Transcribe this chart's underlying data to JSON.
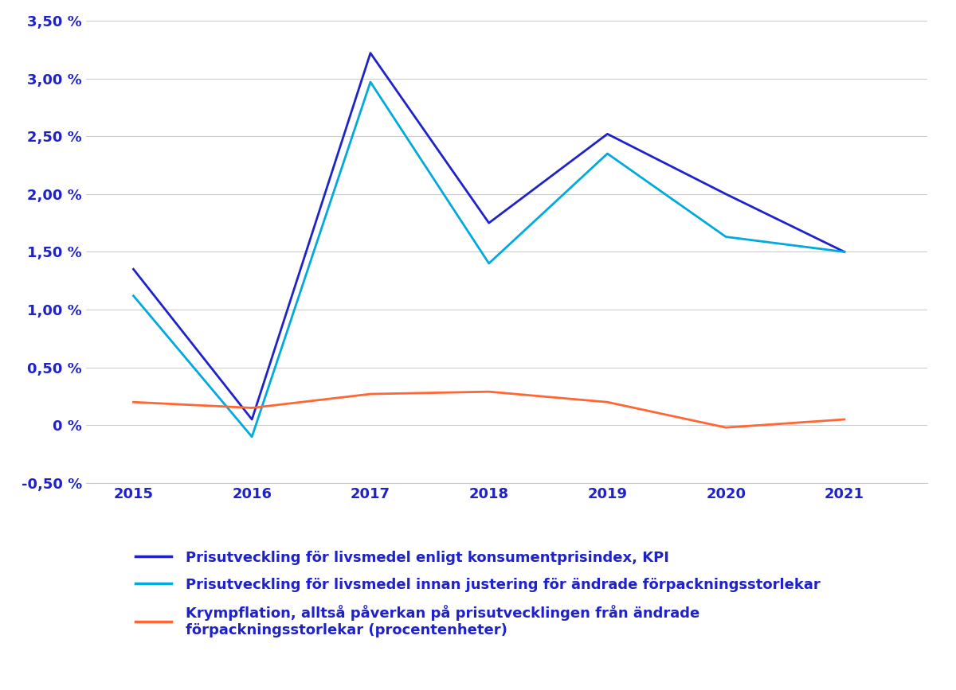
{
  "years": [
    2015,
    2016,
    2017,
    2018,
    2019,
    2020,
    2021
  ],
  "kpi": [
    1.35,
    0.05,
    3.22,
    1.75,
    2.52,
    2.0,
    1.5
  ],
  "before_adj": [
    1.12,
    -0.1,
    2.97,
    1.4,
    2.35,
    1.63,
    1.5
  ],
  "shrinkflation": [
    0.2,
    0.15,
    0.27,
    0.29,
    0.2,
    -0.02,
    0.05
  ],
  "kpi_color": "#1e22c8",
  "before_adj_color": "#00aadd",
  "shrinkflation_color": "#ff6633",
  "background_color": "#ffffff",
  "grid_color": "#cccccc",
  "tick_label_color": "#1e22c8",
  "legend_text_color": "#1e22c8",
  "ylim": [
    -0.5,
    3.5
  ],
  "yticks": [
    -0.5,
    0.0,
    0.5,
    1.0,
    1.5,
    2.0,
    2.5,
    3.0,
    3.5
  ],
  "ytick_labels": [
    "-0,50 %",
    "0 %",
    "0,50 %",
    "1,00 %",
    "1,50 %",
    "2,00 %",
    "2,50 %",
    "3,00 %",
    "3,50 %"
  ],
  "legend1": "Prisutveckling för livsmedel enligt konsumentprisindex, KPI",
  "legend2": "Prisutveckling för livsmedel innan justering för ändrade förpackningsstorlekar",
  "legend3": "Krympflation, alltså påverkan på prisutvecklingen från ändrade\nförpackningsstorlekar (procentenheter)",
  "line_width": 2.0,
  "xlim_left": 2014.6,
  "xlim_right": 2021.7
}
